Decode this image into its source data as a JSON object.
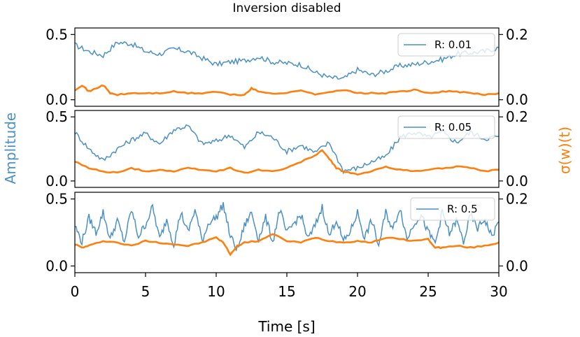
{
  "chart_data": {
    "type": "line",
    "title": "Inversion disabled",
    "xlabel": "Time [s]",
    "ylabel_left": "Amplitude",
    "ylabel_right": "σ(w)(t)",
    "xlim": [
      0,
      30
    ],
    "x_ticks": [
      "0",
      "5",
      "10",
      "15",
      "20",
      "25",
      "30"
    ],
    "left_color": "#4a90c4",
    "right_color": "#ff7f0e",
    "panels": [
      {
        "legend": "R: 0.01",
        "ylim_left": [
          -0.05,
          0.55
        ],
        "ylim_right": [
          -0.02,
          0.22
        ],
        "left_ticks": [
          "0.0",
          "0.5"
        ],
        "right_ticks": [
          "0.0",
          "0.2"
        ],
        "amplitude": {
          "x": [
            0,
            1,
            2,
            3,
            4,
            5,
            6,
            7,
            8,
            9,
            10,
            11,
            12,
            13,
            14,
            15,
            16,
            17,
            18,
            19,
            20,
            21,
            22,
            23,
            24,
            25,
            26,
            27,
            28,
            29,
            30
          ],
          "y": [
            0.42,
            0.37,
            0.34,
            0.44,
            0.43,
            0.37,
            0.35,
            0.39,
            0.37,
            0.32,
            0.27,
            0.29,
            0.3,
            0.33,
            0.29,
            0.28,
            0.27,
            0.21,
            0.17,
            0.16,
            0.23,
            0.19,
            0.22,
            0.26,
            0.27,
            0.29,
            0.31,
            0.35,
            0.36,
            0.37,
            0.4
          ]
        },
        "sigma": {
          "x": [
            0,
            0.5,
            1,
            1.5,
            2,
            2.5,
            3,
            4,
            5,
            6,
            7,
            8,
            9,
            10,
            11,
            12,
            12.5,
            13,
            14,
            15,
            16,
            17,
            18,
            19,
            20,
            21,
            22,
            23,
            24,
            25,
            26,
            27,
            28,
            29,
            30
          ],
          "y": [
            0.03,
            0.045,
            0.025,
            0.035,
            0.045,
            0.02,
            0.015,
            0.02,
            0.02,
            0.02,
            0.025,
            0.02,
            0.02,
            0.025,
            0.015,
            0.015,
            0.035,
            0.025,
            0.02,
            0.02,
            0.03,
            0.015,
            0.025,
            0.03,
            0.02,
            0.02,
            0.02,
            0.025,
            0.03,
            0.02,
            0.025,
            0.025,
            0.02,
            0.015,
            0.02
          ]
        }
      },
      {
        "legend": "R: 0.05",
        "ylim_left": [
          -0.05,
          0.55
        ],
        "ylim_right": [
          -0.02,
          0.22
        ],
        "left_ticks": [
          "0.0",
          "0.5"
        ],
        "right_ticks": [
          "0.0",
          "0.2"
        ],
        "amplitude": {
          "x": [
            0,
            1,
            2,
            3,
            4,
            5,
            6,
            7,
            8,
            9,
            10,
            11,
            12,
            13,
            14,
            15,
            16,
            17,
            18,
            19,
            20,
            21,
            22,
            23,
            24,
            25,
            26,
            27,
            28,
            29,
            30
          ],
          "y": [
            0.38,
            0.25,
            0.16,
            0.25,
            0.32,
            0.37,
            0.29,
            0.4,
            0.43,
            0.29,
            0.31,
            0.36,
            0.26,
            0.38,
            0.34,
            0.23,
            0.28,
            0.22,
            0.3,
            0.08,
            0.1,
            0.15,
            0.19,
            0.34,
            0.38,
            0.34,
            0.38,
            0.3,
            0.38,
            0.33,
            0.35
          ]
        },
        "sigma": {
          "x": [
            0,
            1,
            2,
            3,
            4,
            5,
            6,
            7,
            8,
            9,
            10,
            11,
            12,
            13,
            14,
            15,
            16,
            17,
            17.5,
            18,
            18.5,
            19,
            19.5,
            20,
            21,
            22,
            23,
            24,
            25,
            26,
            27,
            28,
            29,
            30
          ],
          "y": [
            0.06,
            0.04,
            0.03,
            0.025,
            0.04,
            0.03,
            0.035,
            0.03,
            0.04,
            0.035,
            0.03,
            0.04,
            0.025,
            0.035,
            0.03,
            0.04,
            0.06,
            0.08,
            0.095,
            0.07,
            0.04,
            0.03,
            0.025,
            0.02,
            0.03,
            0.045,
            0.035,
            0.03,
            0.035,
            0.04,
            0.045,
            0.04,
            0.03,
            0.035
          ]
        }
      },
      {
        "legend": "R: 0.5",
        "ylim_left": [
          -0.05,
          0.55
        ],
        "ylim_right": [
          -0.02,
          0.22
        ],
        "left_ticks": [
          "0.0",
          "0.5"
        ],
        "right_ticks": [
          "0.0",
          "0.2"
        ],
        "amplitude": {
          "x": [
            0,
            0.5,
            1,
            1.5,
            2,
            2.5,
            3,
            3.5,
            4,
            4.5,
            5,
            5.5,
            6,
            6.5,
            7,
            7.5,
            8,
            8.5,
            9,
            9.5,
            10,
            10.5,
            11,
            11.5,
            12,
            12.5,
            13,
            13.5,
            14,
            14.5,
            15,
            15.5,
            16,
            16.5,
            17,
            17.5,
            18,
            18.5,
            19,
            19.5,
            20,
            20.5,
            21,
            21.5,
            22,
            22.5,
            23,
            23.5,
            24,
            24.5,
            25,
            25.5,
            26,
            26.5,
            27,
            27.5,
            28,
            28.5,
            29,
            29.5,
            30
          ],
          "y": [
            0.3,
            0.18,
            0.36,
            0.25,
            0.4,
            0.2,
            0.34,
            0.18,
            0.42,
            0.22,
            0.31,
            0.44,
            0.2,
            0.35,
            0.16,
            0.4,
            0.25,
            0.42,
            0.19,
            0.33,
            0.36,
            0.46,
            0.22,
            0.12,
            0.3,
            0.4,
            0.2,
            0.36,
            0.18,
            0.42,
            0.24,
            0.32,
            0.38,
            0.2,
            0.3,
            0.44,
            0.22,
            0.35,
            0.18,
            0.26,
            0.4,
            0.21,
            0.34,
            0.15,
            0.4,
            0.27,
            0.44,
            0.2,
            0.32,
            0.38,
            0.25,
            0.17,
            0.4,
            0.24,
            0.34,
            0.18,
            0.38,
            0.28,
            0.35,
            0.22,
            0.33
          ]
        },
        "sigma": {
          "x": [
            0,
            0.5,
            1,
            2,
            3,
            4,
            5,
            6,
            7,
            8,
            9,
            10,
            10.5,
            11,
            11.5,
            12,
            13,
            14,
            15,
            16,
            17,
            18,
            19,
            20,
            21,
            22,
            23,
            24,
            25,
            25.5,
            26,
            27,
            28,
            29,
            30
          ],
          "y": [
            0.065,
            0.055,
            0.06,
            0.075,
            0.07,
            0.06,
            0.075,
            0.07,
            0.065,
            0.06,
            0.07,
            0.085,
            0.07,
            0.035,
            0.06,
            0.07,
            0.075,
            0.095,
            0.075,
            0.07,
            0.085,
            0.075,
            0.07,
            0.075,
            0.07,
            0.085,
            0.08,
            0.075,
            0.08,
            0.055,
            0.055,
            0.06,
            0.055,
            0.06,
            0.07
          ]
        }
      }
    ]
  }
}
